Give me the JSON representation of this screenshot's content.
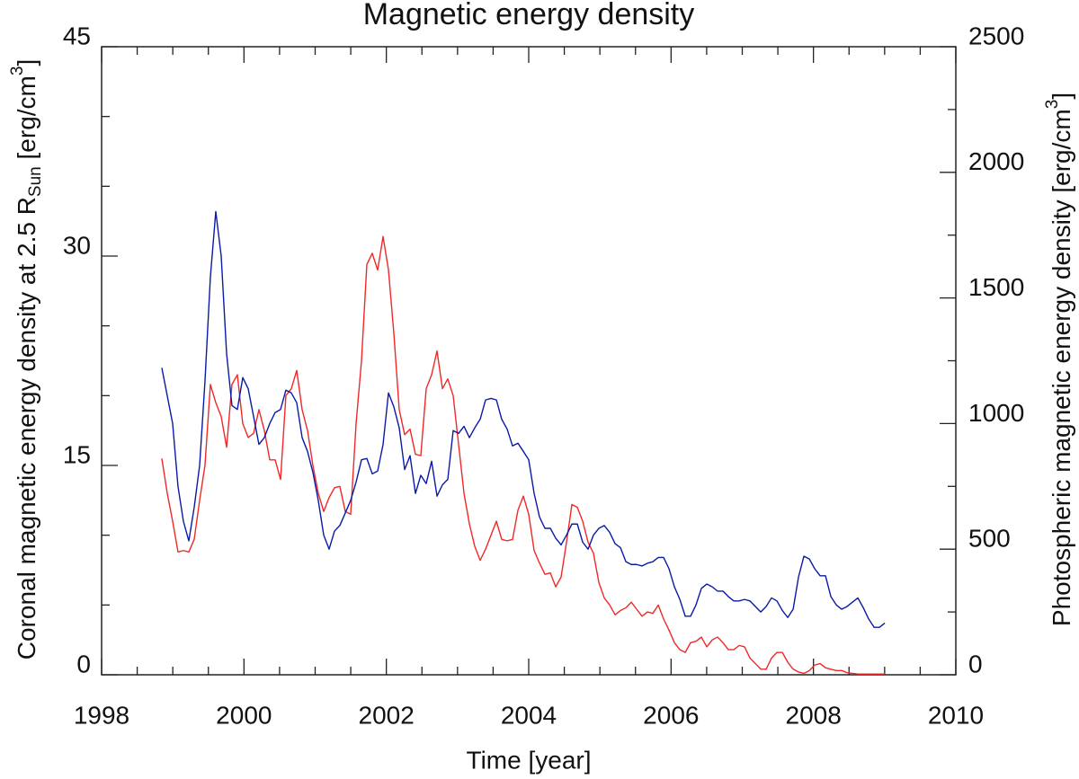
{
  "chart_data": {
    "type": "line",
    "title": "Magnetic energy density",
    "xlabel": "Time [year]",
    "ylabel_parts": [
      "Coronal magnetic energy density at 2.5 R",
      "Sun",
      " [erg/cm",
      "3",
      "]"
    ],
    "y2label_parts": [
      "Photospheric magnetic energy density [erg/cm",
      "3",
      "]"
    ],
    "xlim": [
      1998,
      2010
    ],
    "xticks": [
      1998,
      2000,
      2002,
      2004,
      2006,
      2008,
      2010
    ],
    "minor_xticks": [
      1998.5,
      1999,
      1999.5,
      2000.5,
      2001,
      2001.5,
      2002.5,
      2003,
      2003.5,
      2004.5,
      2005,
      2005.5,
      2006.5,
      2007,
      2007.5,
      2008.5,
      2009,
      2009.5
    ],
    "ylim": [
      0,
      45
    ],
    "yticks": [
      0,
      15,
      30,
      45
    ],
    "minor_yticks": [
      5,
      10,
      20,
      25,
      35,
      40
    ],
    "y2lim": [
      0,
      2500
    ],
    "y2ticks": [
      0,
      500,
      1000,
      1500,
      2000,
      2500
    ],
    "minor_y2ticks": [
      250,
      750,
      1250,
      1750,
      2250
    ],
    "x": [
      1998.846,
      1998.922,
      1998.998,
      1999.073,
      1999.149,
      1999.225,
      1999.301,
      1999.377,
      1999.452,
      1999.528,
      1999.604,
      1999.68,
      1999.756,
      1999.831,
      1999.907,
      1999.983,
      2000.059,
      2000.135,
      2000.21,
      2000.286,
      2000.362,
      2000.438,
      2000.514,
      2000.589,
      2000.665,
      2000.741,
      2000.817,
      2000.893,
      2000.968,
      2001.044,
      2001.12,
      2001.196,
      2001.272,
      2001.347,
      2001.423,
      2001.499,
      2001.575,
      2001.651,
      2001.726,
      2001.802,
      2001.878,
      2001.954,
      2002.03,
      2002.105,
      2002.181,
      2002.257,
      2002.333,
      2002.409,
      2002.484,
      2002.56,
      2002.636,
      2002.712,
      2002.788,
      2002.863,
      2002.939,
      2003.015,
      2003.091,
      2003.167,
      2003.242,
      2003.318,
      2003.394,
      2003.47,
      2003.546,
      2003.621,
      2003.697,
      2003.773,
      2003.849,
      2003.925,
      2004.0,
      2004.076,
      2004.152,
      2004.228,
      2004.304,
      2004.379,
      2004.455,
      2004.531,
      2004.607,
      2004.683,
      2004.758,
      2004.834,
      2004.91,
      2004.986,
      2005.062,
      2005.137,
      2005.213,
      2005.289,
      2005.365,
      2005.441,
      2005.516,
      2005.592,
      2005.668,
      2005.744,
      2005.82,
      2005.895,
      2005.971,
      2006.047,
      2006.123,
      2006.199,
      2006.274,
      2006.35,
      2006.426,
      2006.502,
      2006.578,
      2006.653,
      2006.729,
      2006.805,
      2006.881,
      2006.957,
      2007.032,
      2007.108,
      2007.184,
      2007.26,
      2007.336,
      2007.411,
      2007.487,
      2007.563,
      2007.639,
      2007.715,
      2007.79,
      2007.866,
      2007.942,
      2008.018,
      2008.094,
      2008.169,
      2008.245,
      2008.321,
      2008.397,
      2008.473,
      2008.548,
      2008.624,
      2008.7,
      2008.776,
      2008.852,
      2008.927,
      2009.003
    ],
    "series": [
      {
        "color": "#f02828",
        "values": [
          15.5,
          13,
          11,
          8.8,
          8.9,
          8.8,
          9.7,
          12.5,
          15,
          20.8,
          19.5,
          18.5,
          16.3,
          20.8,
          21.5,
          18,
          17,
          17.3,
          19,
          17.5,
          15.4,
          15.4,
          14,
          20,
          20.5,
          21.8,
          19,
          17.5,
          15,
          13,
          11.7,
          12.7,
          13.4,
          13.5,
          11.7,
          11.5,
          18,
          22.5,
          29.4,
          30.2,
          29,
          31.4,
          29,
          24.5,
          19,
          17.2,
          17.6,
          15.8,
          15.7,
          20.5,
          21.5,
          23.2,
          20.5,
          21.2,
          20,
          16.5,
          13,
          10.8,
          9.2,
          8.2,
          9,
          10,
          11,
          9.7,
          9.6,
          9.7,
          11.8,
          12.8,
          11.5,
          8.9,
          8,
          7.2,
          7.3,
          6.3,
          7,
          9.5,
          12.2,
          12,
          11,
          9.5,
          8.7,
          6.6,
          5.5,
          5,
          4.3,
          4.6,
          4.8,
          5.2,
          4.7,
          4.2,
          4.5,
          4.4,
          5,
          4,
          3.2,
          2.3,
          1.8,
          1.6,
          2.3,
          2.4,
          2.7,
          2,
          2.5,
          2.7,
          2.3,
          1.8,
          1.8,
          2.1,
          2,
          1.2,
          0.8,
          0.4,
          0.4,
          1.2,
          1.6,
          1.6,
          0.9,
          0.4,
          0.2,
          0.1,
          0.3,
          0.7,
          0.8,
          0.5,
          0.4,
          0.3,
          0.3,
          0.15,
          0.1,
          0.05,
          0.05,
          0.05,
          0.05,
          0.05,
          0.05
        ]
      },
      {
        "color": "#0a1aa8",
        "axis": "y2",
        "values": [
          1222,
          1111,
          1000,
          750,
          611,
          533,
          667,
          833,
          1167,
          1583,
          1844,
          1667,
          1278,
          1072,
          1056,
          1183,
          1139,
          1028,
          917,
          944,
          1000,
          1044,
          1056,
          1133,
          1122,
          1083,
          944,
          889,
          806,
          694,
          556,
          500,
          572,
          594,
          644,
          694,
          767,
          856,
          861,
          800,
          811,
          917,
          1122,
          1067,
          983,
          817,
          872,
          722,
          794,
          761,
          850,
          711,
          756,
          778,
          972,
          961,
          989,
          944,
          983,
          1017,
          1094,
          1100,
          1094,
          1017,
          978,
          911,
          922,
          889,
          856,
          722,
          628,
          583,
          583,
          544,
          517,
          556,
          600,
          600,
          528,
          500,
          556,
          583,
          594,
          567,
          522,
          506,
          450,
          439,
          439,
          433,
          444,
          450,
          467,
          467,
          422,
          350,
          300,
          233,
          233,
          278,
          344,
          361,
          350,
          333,
          333,
          311,
          294,
          294,
          300,
          294,
          272,
          250,
          272,
          306,
          294,
          256,
          228,
          261,
          389,
          472,
          461,
          422,
          394,
          394,
          311,
          278,
          261,
          272,
          289,
          306,
          267,
          222,
          189,
          189,
          206
        ]
      }
    ]
  }
}
